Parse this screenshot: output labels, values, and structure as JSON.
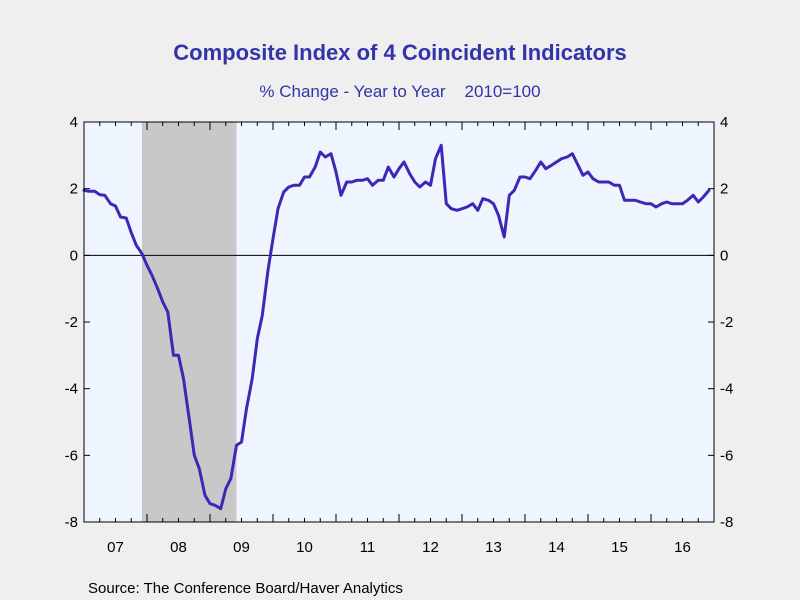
{
  "chart_data": {
    "type": "line",
    "title": "Composite Index of 4 Coincident Indicators",
    "subtitle": "% Change - Year to Year    2010=100",
    "source": "Source:  The Conference Board/Haver Analytics",
    "x_tick_labels": [
      "07",
      "08",
      "09",
      "10",
      "11",
      "12",
      "13",
      "14",
      "15",
      "16"
    ],
    "y_tick_labels": [
      "4",
      "2",
      "0",
      "-2",
      "-4",
      "-6",
      "-8"
    ],
    "y_ticks": [
      4,
      2,
      0,
      -2,
      -4,
      -6,
      -8
    ],
    "ylim": [
      -8,
      4
    ],
    "xlim": [
      2007.0,
      2017.0
    ],
    "x_tick_years": [
      2007,
      2008,
      2009,
      2010,
      2011,
      2012,
      2013,
      2014,
      2015,
      2016
    ],
    "grid": false,
    "zero_line": true,
    "recession": {
      "start": 2007.92,
      "end": 2009.42,
      "color": "#c8c8c8"
    },
    "colors": {
      "line": "#3c28b4",
      "plot_bg": "#eef5ff",
      "title": "#3333aa"
    },
    "series": [
      {
        "x": [
          2007.0,
          2007.08,
          2007.17,
          2007.25,
          2007.33,
          2007.42,
          2007.5,
          2007.58,
          2007.67,
          2007.75,
          2007.83,
          2007.92,
          2008.0,
          2008.08,
          2008.17,
          2008.25,
          2008.33,
          2008.42,
          2008.5,
          2008.58,
          2008.67,
          2008.75,
          2008.83,
          2008.92,
          2009.0,
          2009.08,
          2009.17,
          2009.25,
          2009.33,
          2009.42,
          2009.5,
          2009.58,
          2009.67,
          2009.75,
          2009.83,
          2009.92,
          2010.0,
          2010.08,
          2010.17,
          2010.25,
          2010.33,
          2010.42,
          2010.5,
          2010.58,
          2010.67,
          2010.75,
          2010.83,
          2010.92,
          2011.0,
          2011.08,
          2011.17,
          2011.25,
          2011.33,
          2011.42,
          2011.5,
          2011.58,
          2011.67,
          2011.75,
          2011.83,
          2011.92,
          2012.0,
          2012.08,
          2012.17,
          2012.25,
          2012.33,
          2012.42,
          2012.5,
          2012.58,
          2012.67,
          2012.75,
          2012.83,
          2012.92,
          2013.0,
          2013.08,
          2013.17,
          2013.25,
          2013.33,
          2013.42,
          2013.5,
          2013.58,
          2013.67,
          2013.75,
          2013.83,
          2013.92,
          2014.0,
          2014.08,
          2014.17,
          2014.25,
          2014.33,
          2014.42,
          2014.5,
          2014.58,
          2014.67,
          2014.75,
          2014.83,
          2014.92,
          2015.0,
          2015.08,
          2015.17,
          2015.25,
          2015.33,
          2015.42,
          2015.5,
          2015.58,
          2015.67,
          2015.75,
          2015.83,
          2015.92,
          2016.0,
          2016.08,
          2016.17,
          2016.25,
          2016.33,
          2016.42,
          2016.5,
          2016.58,
          2016.67,
          2016.75,
          2016.83,
          2016.92
        ],
        "values": [
          1.95,
          1.92,
          1.92,
          1.82,
          1.8,
          1.55,
          1.48,
          1.15,
          1.12,
          0.68,
          0.3,
          0.05,
          -0.3,
          -0.6,
          -1.0,
          -1.4,
          -1.7,
          -3.0,
          -3.0,
          -3.7,
          -4.9,
          -6.0,
          -6.4,
          -7.2,
          -7.45,
          -7.5,
          -7.6,
          -7.0,
          -6.7,
          -5.7,
          -5.6,
          -4.6,
          -3.7,
          -2.5,
          -1.8,
          -0.45,
          0.5,
          1.4,
          1.9,
          2.05,
          2.1,
          2.1,
          2.35,
          2.35,
          2.65,
          3.1,
          2.95,
          3.05,
          2.5,
          1.8,
          2.2,
          2.2,
          2.25,
          2.25,
          2.3,
          2.1,
          2.25,
          2.25,
          2.65,
          2.35,
          2.6,
          2.8,
          2.45,
          2.2,
          2.05,
          2.2,
          2.1,
          2.9,
          3.3,
          1.55,
          1.4,
          1.35,
          1.4,
          1.45,
          1.55,
          1.35,
          1.7,
          1.65,
          1.55,
          1.2,
          0.55,
          1.8,
          1.95,
          2.35,
          2.35,
          2.3,
          2.55,
          2.8,
          2.6,
          2.7,
          2.8,
          2.9,
          2.95,
          3.05,
          2.75,
          2.4,
          2.5,
          2.3,
          2.2,
          2.2,
          2.2,
          2.1,
          2.1,
          1.65,
          1.65,
          1.65,
          1.6,
          1.55,
          1.55,
          1.45,
          1.55,
          1.6,
          1.55,
          1.55,
          1.55,
          1.65,
          1.8,
          1.6,
          1.75,
          1.95
        ]
      }
    ]
  }
}
